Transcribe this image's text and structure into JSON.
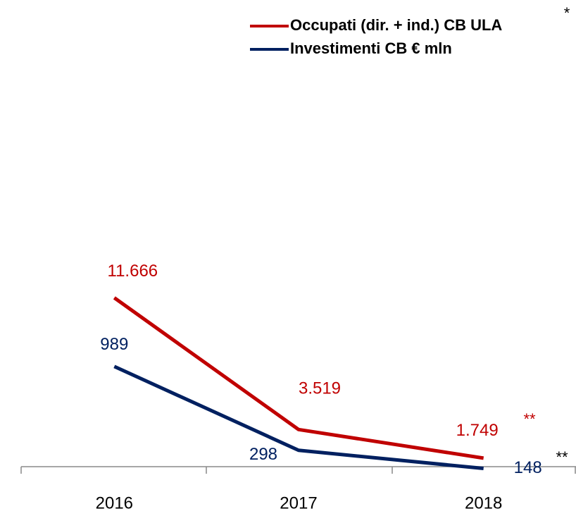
{
  "chart_data": {
    "type": "line",
    "categories": [
      "2016",
      "2017",
      "2018"
    ],
    "series": [
      {
        "name": "Occupati (dir. + ind.) CB ULA",
        "color": "#c00000",
        "values": [
          11666,
          3519,
          1749
        ],
        "value_labels": [
          "11.666",
          "3.519",
          "1.749"
        ]
      },
      {
        "name": "Investimenti CB € mln",
        "color": "#002060",
        "axis": "y2",
        "values": [
          989,
          298,
          148
        ]
      }
    ],
    "ylim": [
      0,
      15000
    ],
    "y2lim": [
      0,
      2000
    ],
    "annotations": [
      "*",
      "**",
      "**"
    ],
    "legend": "top-right"
  }
}
